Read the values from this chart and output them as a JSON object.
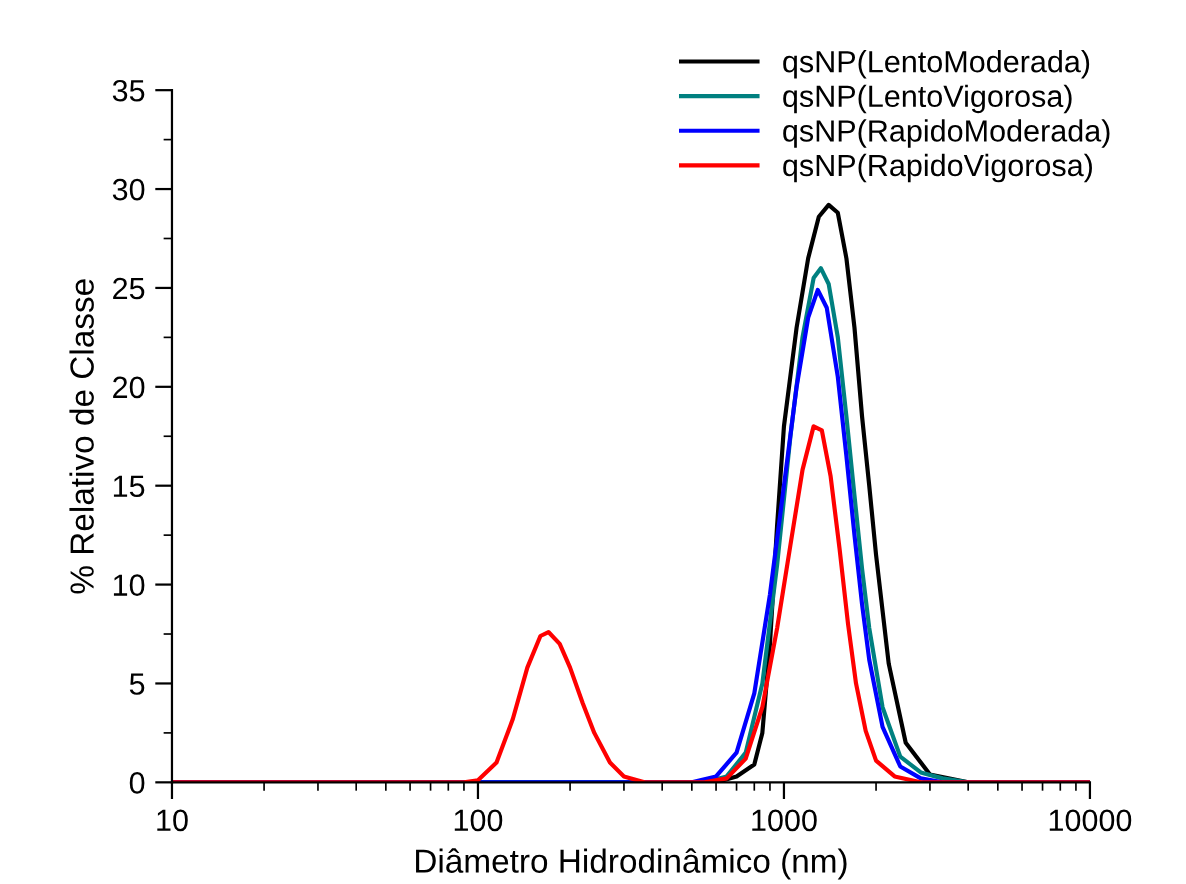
{
  "chart_data": {
    "type": "line",
    "xlabel": "Diâmetro Hidrodinâmico (nm)",
    "ylabel": "% Relativo de Classe",
    "log": "x",
    "xlim": [
      10,
      10000
    ],
    "xticks": [
      10,
      100,
      1000,
      10000
    ],
    "ylim": [
      0,
      35
    ],
    "yticks": [
      0,
      5,
      10,
      15,
      20,
      25,
      30,
      35
    ],
    "grid": false,
    "legend": "top right",
    "marker": "none",
    "line_style": "solid",
    "series": [
      {
        "name": "qsNP(LentoModerada)",
        "color": "#000000",
        "x": [
          10,
          600,
          700,
          800,
          850,
          900,
          950,
          1000,
          1100,
          1200,
          1300,
          1400,
          1500,
          1600,
          1700,
          1800,
          1900,
          2000,
          2200,
          2500,
          3000,
          4000,
          10000
        ],
        "values": [
          0,
          0,
          0.3,
          0.9,
          2.5,
          7,
          13,
          18,
          23,
          26.5,
          28.6,
          29.2,
          28.8,
          26.5,
          23,
          18.5,
          15,
          11.5,
          6,
          2,
          0.4,
          0,
          0
        ]
      },
      {
        "name": "qsNP(LentoVigorosa)",
        "color": "#008080",
        "x": [
          10,
          550,
          650,
          750,
          850,
          950,
          1050,
          1150,
          1250,
          1320,
          1400,
          1500,
          1600,
          1700,
          1800,
          1900,
          2100,
          2400,
          2800,
          3300,
          4000,
          10000
        ],
        "values": [
          0,
          0,
          0.3,
          1.5,
          5,
          11,
          17.5,
          22.5,
          25.5,
          26,
          25.2,
          22.5,
          18.5,
          14.5,
          10.8,
          7.8,
          3.8,
          1.3,
          0.5,
          0.2,
          0,
          0
        ]
      },
      {
        "name": "qsNP(RapidoModerada)",
        "color": "#0000ff",
        "x": [
          10,
          500,
          600,
          700,
          800,
          900,
          1000,
          1100,
          1200,
          1290,
          1380,
          1500,
          1600,
          1700,
          1800,
          1900,
          2100,
          2400,
          2800,
          3300,
          10000
        ],
        "values": [
          0,
          0,
          0.3,
          1.5,
          4.5,
          9.5,
          15,
          20,
          23.5,
          24.9,
          24,
          20.5,
          16.5,
          12.5,
          9,
          6.2,
          2.8,
          0.8,
          0.2,
          0,
          0
        ]
      },
      {
        "name": "qsNP(RapidoVigorosa)",
        "color": "#ff0000",
        "x": [
          10,
          90,
          100,
          115,
          130,
          145,
          160,
          170,
          185,
          200,
          220,
          240,
          270,
          300,
          350,
          550,
          650,
          750,
          850,
          950,
          1050,
          1150,
          1250,
          1330,
          1420,
          1520,
          1620,
          1720,
          1850,
          2000,
          2300,
          2800,
          10000
        ],
        "values": [
          0,
          0,
          0.1,
          1,
          3.2,
          5.8,
          7.4,
          7.6,
          7,
          5.8,
          4,
          2.5,
          1,
          0.3,
          0,
          0,
          0.2,
          1.2,
          3.8,
          7.8,
          12,
          15.8,
          18,
          17.8,
          15.5,
          11.8,
          8,
          5,
          2.6,
          1.1,
          0.3,
          0,
          0
        ]
      }
    ]
  }
}
